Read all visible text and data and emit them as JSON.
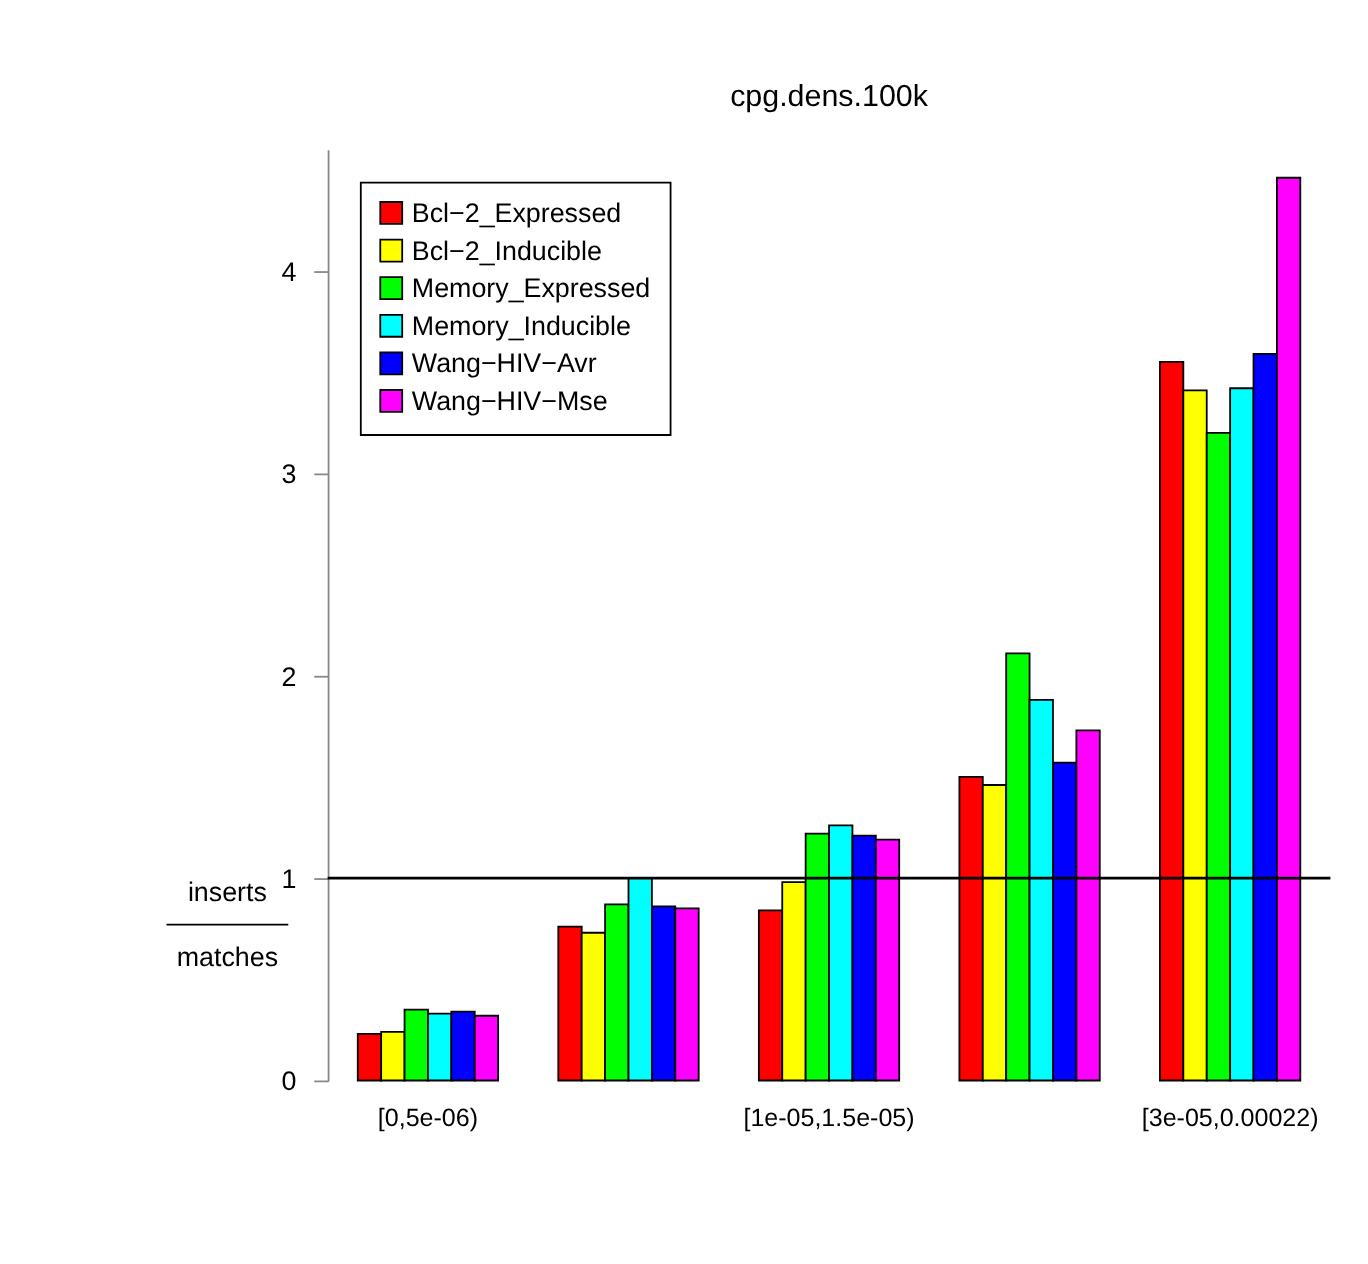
{
  "chart_data": {
    "type": "bar",
    "title": "cpg.dens.100k",
    "ylabel": "inserts",
    "annotations": [
      "matches"
    ],
    "categories": [
      "[0,5e-06)",
      null,
      "[1e-05,1.5e-05)",
      null,
      "[3e-05,0.00022)"
    ],
    "series": [
      {
        "name": "Bcl−2_Expressed",
        "color": "#ff0000",
        "values": [
          0.23,
          0.76,
          0.84,
          1.5,
          3.55
        ]
      },
      {
        "name": "Bcl−2_Inducible",
        "color": "#ffff00",
        "values": [
          0.24,
          0.73,
          0.98,
          1.46,
          3.41
        ]
      },
      {
        "name": "Memory_Expressed",
        "color": "#00ff00",
        "values": [
          0.35,
          0.87,
          1.22,
          2.11,
          3.2
        ]
      },
      {
        "name": "Memory_Inducible",
        "color": "#00ffff",
        "values": [
          0.33,
          1.0,
          1.26,
          1.88,
          3.42
        ]
      },
      {
        "name": "Wang−HIV−Avr",
        "color": "#0000ff",
        "values": [
          0.34,
          0.86,
          1.21,
          1.57,
          3.59
        ]
      },
      {
        "name": "Wang−HIV−Mse",
        "color": "#ff00ff",
        "values": [
          0.32,
          0.85,
          1.19,
          1.73,
          4.46
        ]
      }
    ],
    "ylim": [
      0,
      4.6
    ],
    "yticks": [
      0,
      1,
      2,
      3,
      4
    ],
    "grid": false,
    "legend": "top left",
    "ref_lines": [
      {
        "axis": "y",
        "value": 1,
        "color": "#000000"
      }
    ]
  }
}
